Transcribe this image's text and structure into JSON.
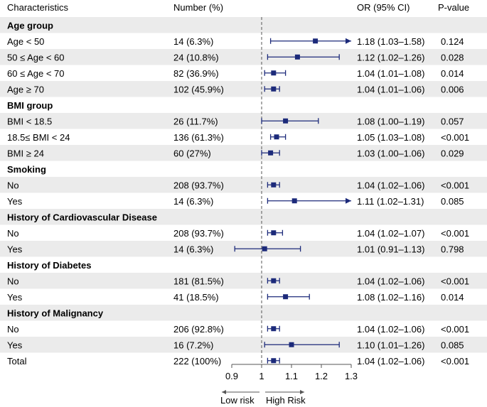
{
  "headers": {
    "characteristics": "Characteristics",
    "number": "Number (%)",
    "or": "OR (95% CI)",
    "pvalue": "P-value"
  },
  "colors": {
    "marker": "#1c2a7a",
    "stripe": "#ebebeb",
    "ref_line": "#555555"
  },
  "axis": {
    "ticks": [
      "0.9",
      "1",
      "1.1",
      "1.2",
      "1.3"
    ],
    "low_label": "Low risk",
    "high_label": "High Risk"
  },
  "chart_data": {
    "type": "forest",
    "reference_value": 1,
    "xlim": [
      0.9,
      1.3
    ],
    "rows": [
      {
        "kind": "group",
        "label": "Age group"
      },
      {
        "kind": "item",
        "label": "Age < 50",
        "number": "14 (6.3%)",
        "or_text": "1.18 (1.03–1.58)",
        "p": "0.124",
        "or": 1.18,
        "lo": 1.03,
        "hi": 1.58,
        "arrow": true
      },
      {
        "kind": "item",
        "label": "50 ≤ Age < 60",
        "number": "24 (10.8%)",
        "or_text": "1.12 (1.02–1.26)",
        "p": "0.028",
        "or": 1.12,
        "lo": 1.02,
        "hi": 1.26,
        "arrow": false
      },
      {
        "kind": "item",
        "label": "60 ≤ Age < 70",
        "number": "82 (36.9%)",
        "or_text": "1.04 (1.01–1.08)",
        "p": "0.014",
        "or": 1.04,
        "lo": 1.01,
        "hi": 1.08,
        "arrow": false
      },
      {
        "kind": "item",
        "label": "Age ≥ 70",
        "number": "102 (45.9%)",
        "or_text": "1.04 (1.01–1.06)",
        "p": "0.006",
        "or": 1.04,
        "lo": 1.01,
        "hi": 1.06,
        "arrow": false
      },
      {
        "kind": "group",
        "label": "BMI group"
      },
      {
        "kind": "item",
        "label": "BMI < 18.5",
        "number": "26 (11.7%)",
        "or_text": "1.08 (1.00–1.19)",
        "p": "0.057",
        "or": 1.08,
        "lo": 1.0,
        "hi": 1.19,
        "arrow": false
      },
      {
        "kind": "item",
        "label": "18.5≤ BMI < 24",
        "number": "136 (61.3%)",
        "or_text": "1.05 (1.03–1.08)",
        "p": "<0.001",
        "or": 1.05,
        "lo": 1.03,
        "hi": 1.08,
        "arrow": false
      },
      {
        "kind": "item",
        "label": "BMI ≥ 24",
        "number": "60 (27%)",
        "or_text": "1.03 (1.00–1.06)",
        "p": "0.029",
        "or": 1.03,
        "lo": 1.0,
        "hi": 1.06,
        "arrow": false
      },
      {
        "kind": "group",
        "label": "Smoking"
      },
      {
        "kind": "item",
        "label": "No",
        "number": "208 (93.7%)",
        "or_text": "1.04 (1.02–1.06)",
        "p": "<0.001",
        "or": 1.04,
        "lo": 1.02,
        "hi": 1.06,
        "arrow": false
      },
      {
        "kind": "item",
        "label": "Yes",
        "number": "14 (6.3%)",
        "or_text": "1.11 (1.02–1.31)",
        "p": "0.085",
        "or": 1.11,
        "lo": 1.02,
        "hi": 1.31,
        "arrow": true
      },
      {
        "kind": "group",
        "label": "History of Cardiovascular Disease"
      },
      {
        "kind": "item",
        "label": "No",
        "number": "208 (93.7%)",
        "or_text": "1.04 (1.02–1.07)",
        "p": "<0.001",
        "or": 1.04,
        "lo": 1.02,
        "hi": 1.07,
        "arrow": false
      },
      {
        "kind": "item",
        "label": "Yes",
        "number": "14 (6.3%)",
        "or_text": "1.01 (0.91–1.13)",
        "p": "0.798",
        "or": 1.01,
        "lo": 0.91,
        "hi": 1.13,
        "arrow": false
      },
      {
        "kind": "group",
        "label": "History of Diabetes"
      },
      {
        "kind": "item",
        "label": "No",
        "number": "181 (81.5%)",
        "or_text": "1.04 (1.02–1.06)",
        "p": "<0.001",
        "or": 1.04,
        "lo": 1.02,
        "hi": 1.06,
        "arrow": false
      },
      {
        "kind": "item",
        "label": "Yes",
        "number": "41 (18.5%)",
        "or_text": "1.08 (1.02–1.16)",
        "p": "0.014",
        "or": 1.08,
        "lo": 1.02,
        "hi": 1.16,
        "arrow": false
      },
      {
        "kind": "group",
        "label": "History of Malignancy"
      },
      {
        "kind": "item",
        "label": "No",
        "number": "206 (92.8%)",
        "or_text": "1.04 (1.02–1.06)",
        "p": "<0.001",
        "or": 1.04,
        "lo": 1.02,
        "hi": 1.06,
        "arrow": false
      },
      {
        "kind": "item",
        "label": "Yes",
        "number": "16 (7.2%)",
        "or_text": "1.10 (1.01–1.26)",
        "p": "0.085",
        "or": 1.1,
        "lo": 1.01,
        "hi": 1.26,
        "arrow": false
      },
      {
        "kind": "item",
        "label": "Total",
        "number": "222 (100%)",
        "or_text": "1.04 (1.02–1.06)",
        "p": "<0.001",
        "or": 1.04,
        "lo": 1.02,
        "hi": 1.06,
        "arrow": false
      }
    ]
  }
}
